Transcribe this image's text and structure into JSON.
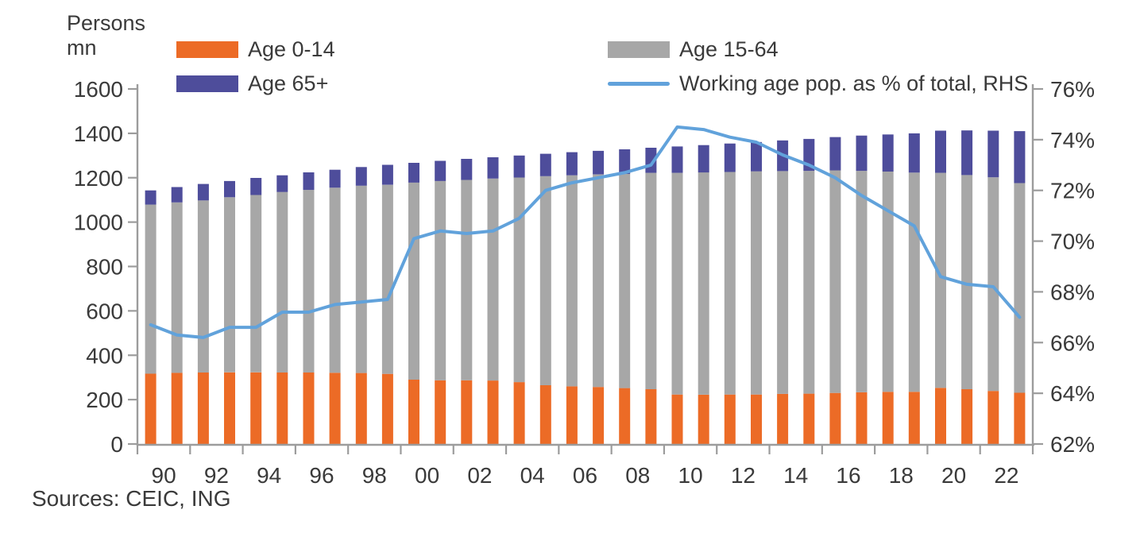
{
  "chart_data": {
    "type": "bar",
    "subtype": "stacked-bar-with-line",
    "title": "",
    "unit_label": "Persons\nmn",
    "grid": false,
    "legend_position": "top",
    "years": [
      1990,
      1991,
      1992,
      1993,
      1994,
      1995,
      1996,
      1997,
      1998,
      1999,
      2000,
      2001,
      2002,
      2003,
      2004,
      2005,
      2006,
      2007,
      2008,
      2009,
      2010,
      2011,
      2012,
      2013,
      2014,
      2015,
      2016,
      2017,
      2018,
      2019,
      2020,
      2021,
      2022,
      2023
    ],
    "x_tick_labels": [
      "90",
      "92",
      "94",
      "96",
      "98",
      "00",
      "02",
      "04",
      "06",
      "08",
      "10",
      "12",
      "14",
      "16",
      "18",
      "20",
      "22"
    ],
    "left_axis": {
      "min": 0,
      "max": 1600,
      "step": 200,
      "tick_labels": [
        "1600",
        "1400",
        "1200",
        "1000",
        "800",
        "600",
        "400",
        "200",
        "0"
      ]
    },
    "right_axis": {
      "min": 62,
      "max": 76,
      "step": 2,
      "tick_labels": [
        "76%",
        "74%",
        "72%",
        "70%",
        "68%",
        "66%",
        "64%",
        "62%"
      ]
    },
    "series": [
      {
        "name": "Age 0-14",
        "type": "bar",
        "axis": "left",
        "color": "#EC6B26",
        "values": [
          317,
          321,
          322,
          323,
          323,
          322,
          322,
          321,
          320,
          316,
          290,
          287,
          287,
          286,
          279,
          265,
          260,
          257,
          252,
          247,
          223,
          222,
          223,
          223,
          226,
          227,
          230,
          233,
          235,
          235,
          253,
          247,
          239,
          231
        ]
      },
      {
        "name": "Age 15-64",
        "type": "bar",
        "axis": "left",
        "color": "#A7A7A7",
        "values": [
          762,
          768,
          776,
          789,
          799,
          814,
          823,
          834,
          844,
          852,
          888,
          898,
          903,
          910,
          922,
          942,
          951,
          958,
          965,
          975,
          999,
          1002,
          1003,
          1006,
          1004,
          1004,
          1003,
          998,
          993,
          988,
          969,
          965,
          963,
          945
        ]
      },
      {
        "name": "Age 65+",
        "type": "bar",
        "axis": "left",
        "color": "#4E4D9B",
        "values": [
          64,
          69,
          74,
          73,
          77,
          75,
          79,
          81,
          84,
          90,
          89,
          91,
          95,
          96,
          99,
          101,
          104,
          106,
          111,
          113,
          119,
          123,
          128,
          132,
          138,
          144,
          150,
          159,
          167,
          177,
          190,
          201,
          210,
          234
        ]
      },
      {
        "name": "Working age pop. as % of total, RHS",
        "type": "line",
        "axis": "right",
        "color": "#61A2DB",
        "values": [
          66.7,
          66.3,
          66.2,
          66.6,
          66.6,
          67.2,
          67.2,
          67.5,
          67.6,
          67.7,
          70.1,
          70.4,
          70.3,
          70.4,
          70.9,
          72.0,
          72.3,
          72.5,
          72.7,
          73.0,
          74.5,
          74.4,
          74.1,
          73.9,
          73.4,
          73.0,
          72.5,
          71.8,
          71.2,
          70.6,
          68.6,
          68.3,
          68.2,
          67.0
        ]
      }
    ]
  },
  "footer": {
    "sources_label": "Sources: CEIC, ING"
  },
  "colors": {
    "axis": "#9C9C9C",
    "text": "#3A3A3A",
    "background": "#FFFFFF"
  }
}
